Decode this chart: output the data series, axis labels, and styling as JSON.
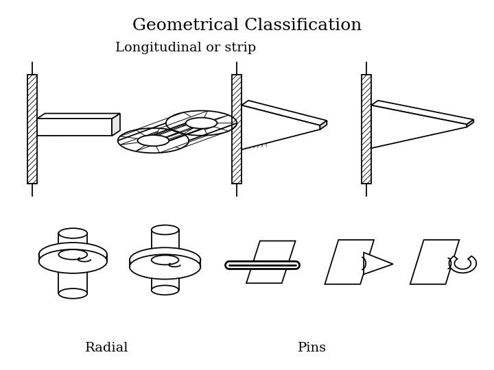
{
  "title": "Geometrical Classification",
  "subtitle": "Longitudinal or strip",
  "label_radial": "Radial",
  "label_pins": "Pins",
  "bg_color": "#ffffff",
  "title_fontsize": 18,
  "subtitle_fontsize": 14,
  "label_fontsize": 14
}
